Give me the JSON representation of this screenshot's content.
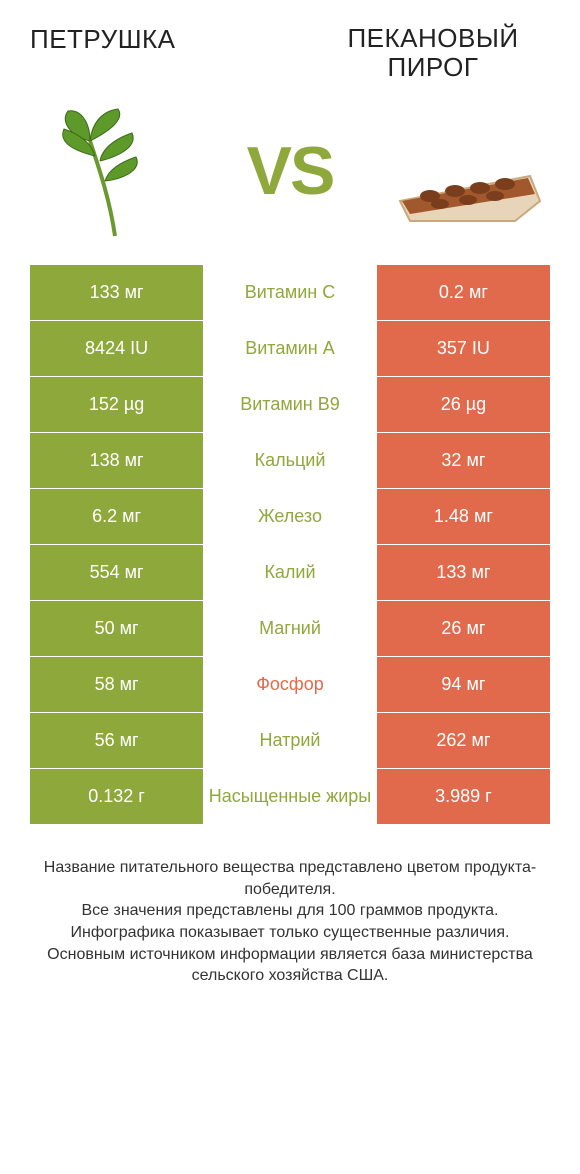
{
  "header": {
    "left_title": "ПЕТРУШКА",
    "right_title": "ПЕКАНОВЫЙ ПИРОГ",
    "vs": "VS"
  },
  "colors": {
    "left_bg": "#8fa83b",
    "right_bg": "#e06a4b",
    "mid_left_text": "#8fa83b",
    "mid_right_text": "#e06a4b"
  },
  "rows": [
    {
      "left": "133 мг",
      "mid": "Витамин C",
      "right": "0.2 мг",
      "winner": "left"
    },
    {
      "left": "8424 IU",
      "mid": "Витамин A",
      "right": "357 IU",
      "winner": "left"
    },
    {
      "left": "152 µg",
      "mid": "Витамин B9",
      "right": "26 µg",
      "winner": "left"
    },
    {
      "left": "138 мг",
      "mid": "Кальций",
      "right": "32 мг",
      "winner": "left"
    },
    {
      "left": "6.2 мг",
      "mid": "Железо",
      "right": "1.48 мг",
      "winner": "left"
    },
    {
      "left": "554 мг",
      "mid": "Калий",
      "right": "133 мг",
      "winner": "left"
    },
    {
      "left": "50 мг",
      "mid": "Магний",
      "right": "26 мг",
      "winner": "left"
    },
    {
      "left": "58 мг",
      "mid": "Фосфор",
      "right": "94 мг",
      "winner": "right"
    },
    {
      "left": "56 мг",
      "mid": "Натрий",
      "right": "262 мг",
      "winner": "left"
    },
    {
      "left": "0.132 г",
      "mid": "Насыщенные жиры",
      "right": "3.989 г",
      "winner": "left"
    }
  ],
  "footer": {
    "line1": "Название питательного вещества представлено цветом продукта-победителя.",
    "line2": "Все значения представлены для 100 граммов продукта.",
    "line3": "Инфографика показывает только существенные различия.",
    "line4": "Основным источником информации является база министерства сельского хозяйства США."
  }
}
